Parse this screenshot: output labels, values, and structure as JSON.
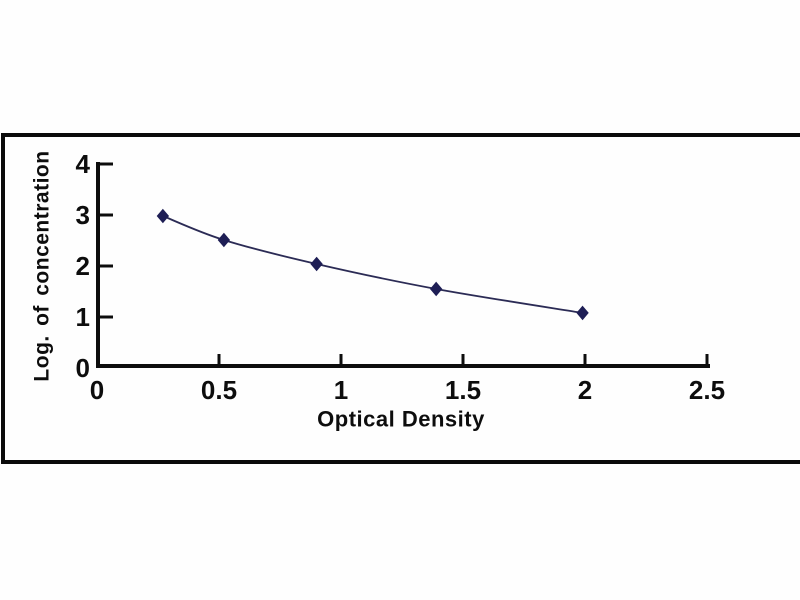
{
  "figure": {
    "background": "#fefefe",
    "frame_border_color": "#0a0a0a"
  },
  "chart_data": {
    "type": "scatter",
    "style": "line-with-diamond-markers",
    "title": "",
    "xlabel": "Optical Density",
    "ylabel": "Log. of concentration",
    "x": [
      0.27,
      0.52,
      0.9,
      1.39,
      1.99
    ],
    "y": [
      2.98,
      2.51,
      2.04,
      1.55,
      1.08
    ],
    "x_tick_labels": [
      "0",
      "0.5",
      "1",
      "1.5",
      "2",
      "2.5"
    ],
    "x_tick_values": [
      0,
      0.5,
      1,
      1.5,
      2,
      2.5
    ],
    "y_tick_labels": [
      "0",
      "1",
      "2",
      "3",
      "4"
    ],
    "y_tick_values": [
      0,
      1,
      2,
      3,
      4
    ],
    "xlim": [
      0,
      2.5
    ],
    "ylim": [
      0,
      4
    ],
    "grid": false,
    "legend": null,
    "axis_color": "#0d0d0d",
    "marker_color": "#1e1e55",
    "line_color": "#2b2b55"
  }
}
